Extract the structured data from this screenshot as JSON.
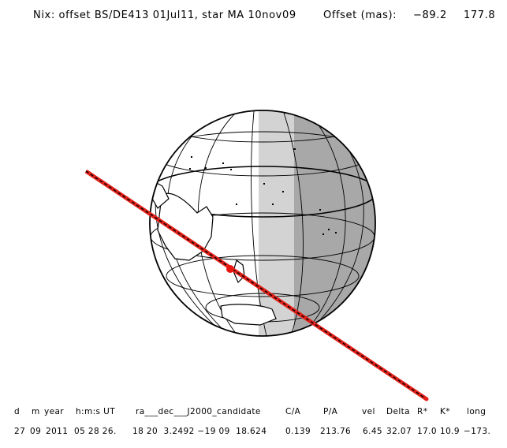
{
  "header": {
    "title": "Nix: offset BS/DE413 01Jul11, star MA 10nov09",
    "offset_label": "Offset (mas):",
    "offset_x": "−89.2",
    "offset_y": "177.8"
  },
  "table": {
    "headers": [
      "d",
      "m",
      "year",
      "h:m:s UT",
      "ra___dec___J2000_candidate",
      "C/A",
      "P/A",
      "vel",
      "Delta",
      "R*",
      "K*",
      "long"
    ],
    "values": [
      "27",
      "09",
      "2011",
      "05 28 26.",
      "18 20  3.2492 −19 09  18.624",
      "0.139",
      "213.76",
      "6.45",
      "32.07",
      "17.0",
      "10.9",
      "−173."
    ]
  },
  "colors": {
    "shadow_light": "#d3d3d3",
    "shadow_dark": "#a8a8a8",
    "track_red": "#e32119",
    "track_dash": "#000000",
    "observer_dot": "#e8150f"
  }
}
